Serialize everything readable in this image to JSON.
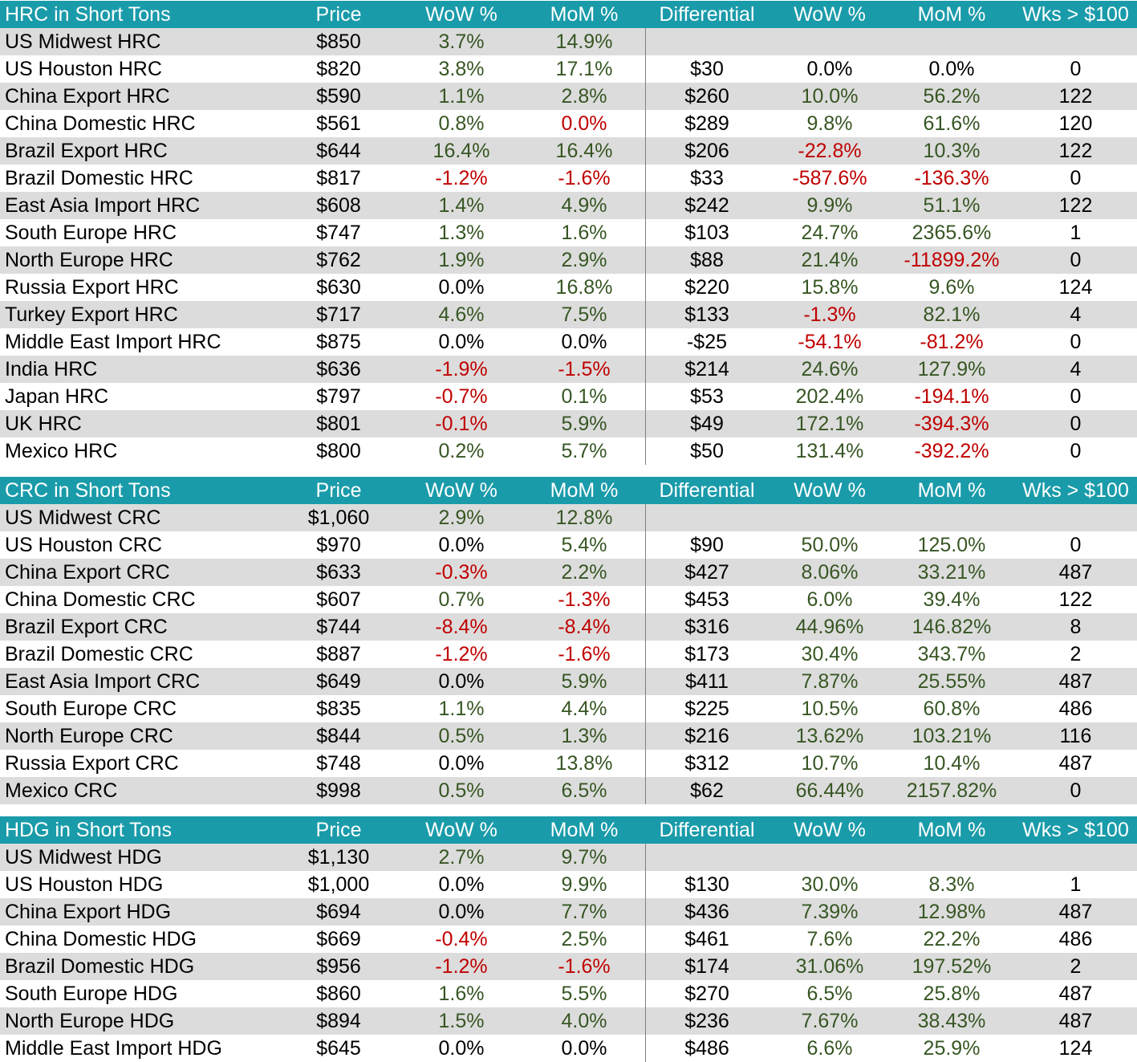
{
  "colors": {
    "header_bg": "#1a9baa",
    "shade_bg": "#dcdcdc",
    "positive": "#375623",
    "negative": "#c00000"
  },
  "sections": [
    {
      "headers": [
        "HRC in Short Tons",
        "Price",
        "WoW %",
        "MoM %",
        "Differential",
        "WoW %",
        "MoM %",
        "Wks > $100"
      ],
      "rows": [
        [
          "US Midwest HRC",
          "$850",
          "3.7%",
          "14.9%",
          "",
          "",
          "",
          ""
        ],
        [
          "US Houston HRC",
          "$820",
          "3.8%",
          "17.1%",
          "$30",
          "0.0%",
          "0.0%",
          "0"
        ],
        [
          "China Export HRC",
          "$590",
          "1.1%",
          "2.8%",
          "$260",
          "10.0%",
          "56.2%",
          "122"
        ],
        [
          "China Domestic HRC",
          "$561",
          "0.8%",
          "0.0%",
          "$289",
          "9.8%",
          "61.6%",
          "120"
        ],
        [
          "Brazil Export HRC",
          "$644",
          "16.4%",
          "16.4%",
          "$206",
          "-22.8%",
          "10.3%",
          "122"
        ],
        [
          "Brazil Domestic HRC",
          "$817",
          "-1.2%",
          "-1.6%",
          "$33",
          "-587.6%",
          "-136.3%",
          "0"
        ],
        [
          "East Asia Import HRC",
          "$608",
          "1.4%",
          "4.9%",
          "$242",
          "9.9%",
          "51.1%",
          "122"
        ],
        [
          "South Europe HRC",
          "$747",
          "1.3%",
          "1.6%",
          "$103",
          "24.7%",
          "2365.6%",
          "1"
        ],
        [
          "North Europe HRC",
          "$762",
          "1.9%",
          "2.9%",
          "$88",
          "21.4%",
          "-11899.2%",
          "0"
        ],
        [
          "Russia Export HRC",
          "$630",
          "0.0%",
          "16.8%",
          "$220",
          "15.8%",
          "9.6%",
          "124"
        ],
        [
          "Turkey Export HRC",
          "$717",
          "4.6%",
          "7.5%",
          "$133",
          "-1.3%",
          "82.1%",
          "4"
        ],
        [
          "Middle East Import HRC",
          "$875",
          "0.0%",
          "0.0%",
          "-$25",
          "-54.1%",
          "-81.2%",
          "0"
        ],
        [
          "India HRC",
          "$636",
          "-1.9%",
          "-1.5%",
          "$214",
          "24.6%",
          "127.9%",
          "4"
        ],
        [
          "Japan HRC",
          "$797",
          "-0.7%",
          "0.1%",
          "$53",
          "202.4%",
          "-194.1%",
          "0"
        ],
        [
          "UK HRC",
          "$801",
          "-0.1%",
          "5.9%",
          "$49",
          "172.1%",
          "-394.3%",
          "0"
        ],
        [
          "Mexico HRC",
          "$800",
          "0.2%",
          "5.7%",
          "$50",
          "131.4%",
          "-392.2%",
          "0"
        ]
      ],
      "colors": [
        [
          "",
          "",
          "pos",
          "pos",
          "",
          "",
          "",
          ""
        ],
        [
          "",
          "",
          "pos",
          "pos",
          "",
          "",
          "",
          ""
        ],
        [
          "",
          "",
          "pos",
          "pos",
          "",
          "pos",
          "pos",
          ""
        ],
        [
          "",
          "",
          "pos",
          "neg",
          "",
          "pos",
          "pos",
          ""
        ],
        [
          "",
          "",
          "pos",
          "pos",
          "",
          "neg",
          "pos",
          ""
        ],
        [
          "",
          "",
          "neg",
          "neg",
          "",
          "neg",
          "neg",
          ""
        ],
        [
          "",
          "",
          "pos",
          "pos",
          "",
          "pos",
          "pos",
          ""
        ],
        [
          "",
          "",
          "pos",
          "pos",
          "",
          "pos",
          "pos",
          ""
        ],
        [
          "",
          "",
          "pos",
          "pos",
          "",
          "pos",
          "neg",
          ""
        ],
        [
          "",
          "",
          "",
          "pos",
          "",
          "pos",
          "pos",
          ""
        ],
        [
          "",
          "",
          "pos",
          "pos",
          "",
          "neg",
          "pos",
          ""
        ],
        [
          "",
          "",
          "",
          "",
          "",
          "neg",
          "neg",
          ""
        ],
        [
          "",
          "",
          "neg",
          "neg",
          "",
          "pos",
          "pos",
          ""
        ],
        [
          "",
          "",
          "neg",
          "pos",
          "",
          "pos",
          "neg",
          ""
        ],
        [
          "",
          "",
          "neg",
          "pos",
          "",
          "pos",
          "neg",
          ""
        ],
        [
          "",
          "",
          "pos",
          "pos",
          "",
          "pos",
          "neg",
          ""
        ]
      ]
    },
    {
      "headers": [
        "CRC in Short Tons",
        "Price",
        "WoW %",
        "MoM %",
        "Differential",
        "WoW %",
        "MoM %",
        "Wks > $100"
      ],
      "rows": [
        [
          "US Midwest CRC",
          "$1,060",
          "2.9%",
          "12.8%",
          "",
          "",
          "",
          ""
        ],
        [
          "US Houston CRC",
          "$970",
          "0.0%",
          "5.4%",
          "$90",
          "50.0%",
          "125.0%",
          "0"
        ],
        [
          "China Export CRC",
          "$633",
          "-0.3%",
          "2.2%",
          "$427",
          "8.06%",
          "33.21%",
          "487"
        ],
        [
          "China Domestic CRC",
          "$607",
          "0.7%",
          "-1.3%",
          "$453",
          "6.0%",
          "39.4%",
          "122"
        ],
        [
          "Brazil Export CRC",
          "$744",
          "-8.4%",
          "-8.4%",
          "$316",
          "44.96%",
          "146.82%",
          "8"
        ],
        [
          "Brazil Domestic CRC",
          "$887",
          "-1.2%",
          "-1.6%",
          "$173",
          "30.4%",
          "343.7%",
          "2"
        ],
        [
          "East Asia Import CRC",
          "$649",
          "0.0%",
          "5.9%",
          "$411",
          "7.87%",
          "25.55%",
          "487"
        ],
        [
          "South Europe CRC",
          "$835",
          "1.1%",
          "4.4%",
          "$225",
          "10.5%",
          "60.8%",
          "486"
        ],
        [
          "North Europe CRC",
          "$844",
          "0.5%",
          "1.3%",
          "$216",
          "13.62%",
          "103.21%",
          "116"
        ],
        [
          "Russia Export CRC",
          "$748",
          "0.0%",
          "13.8%",
          "$312",
          "10.7%",
          "10.4%",
          "487"
        ],
        [
          "Mexico CRC",
          "$998",
          "0.5%",
          "6.5%",
          "$62",
          "66.44%",
          "2157.82%",
          "0"
        ]
      ],
      "colors": [
        [
          "",
          "",
          "pos",
          "pos",
          "",
          "",
          "",
          ""
        ],
        [
          "",
          "",
          "",
          "pos",
          "",
          "pos",
          "pos",
          ""
        ],
        [
          "",
          "",
          "neg",
          "pos",
          "",
          "pos",
          "pos",
          ""
        ],
        [
          "",
          "",
          "pos",
          "neg",
          "",
          "pos",
          "pos",
          ""
        ],
        [
          "",
          "",
          "neg",
          "neg",
          "",
          "pos",
          "pos",
          ""
        ],
        [
          "",
          "",
          "neg",
          "neg",
          "",
          "pos",
          "pos",
          ""
        ],
        [
          "",
          "",
          "",
          "pos",
          "",
          "pos",
          "pos",
          ""
        ],
        [
          "",
          "",
          "pos",
          "pos",
          "",
          "pos",
          "pos",
          ""
        ],
        [
          "",
          "",
          "pos",
          "pos",
          "",
          "pos",
          "pos",
          ""
        ],
        [
          "",
          "",
          "",
          "pos",
          "",
          "pos",
          "pos",
          ""
        ],
        [
          "",
          "",
          "pos",
          "pos",
          "",
          "pos",
          "pos",
          ""
        ]
      ]
    },
    {
      "headers": [
        "HDG in Short Tons",
        "Price",
        "WoW %",
        "MoM %",
        "Differential",
        "WoW %",
        "MoM %",
        "Wks > $100"
      ],
      "rows": [
        [
          "US Midwest HDG",
          "$1,130",
          "2.7%",
          "9.7%",
          "",
          "",
          "",
          ""
        ],
        [
          "US Houston HDG",
          "$1,000",
          "0.0%",
          "9.9%",
          "$130",
          "30.0%",
          "8.3%",
          "1"
        ],
        [
          "China Export HDG",
          "$694",
          "0.0%",
          "7.7%",
          "$436",
          "7.39%",
          "12.98%",
          "487"
        ],
        [
          "China Domestic HDG",
          "$669",
          "-0.4%",
          "2.5%",
          "$461",
          "7.6%",
          "22.2%",
          "486"
        ],
        [
          "Brazil Domestic HDG",
          "$956",
          "-1.2%",
          "-1.6%",
          "$174",
          "31.06%",
          "197.52%",
          "2"
        ],
        [
          "South Europe HDG",
          "$860",
          "1.6%",
          "5.5%",
          "$270",
          "6.5%",
          "25.8%",
          "487"
        ],
        [
          "North Europe HDG",
          "$894",
          "1.5%",
          "4.0%",
          "$236",
          "7.67%",
          "38.43%",
          "487"
        ],
        [
          "Middle East Import HDG",
          "$645",
          "0.0%",
          "0.0%",
          "$486",
          "6.6%",
          "25.9%",
          "124"
        ]
      ],
      "colors": [
        [
          "",
          "",
          "pos",
          "pos",
          "",
          "",
          "",
          ""
        ],
        [
          "",
          "",
          "",
          "pos",
          "",
          "pos",
          "pos",
          ""
        ],
        [
          "",
          "",
          "",
          "pos",
          "",
          "pos",
          "pos",
          ""
        ],
        [
          "",
          "",
          "neg",
          "pos",
          "",
          "pos",
          "pos",
          ""
        ],
        [
          "",
          "",
          "neg",
          "neg",
          "",
          "pos",
          "pos",
          ""
        ],
        [
          "",
          "",
          "pos",
          "pos",
          "",
          "pos",
          "pos",
          ""
        ],
        [
          "",
          "",
          "pos",
          "pos",
          "",
          "pos",
          "pos",
          ""
        ],
        [
          "",
          "",
          "",
          "",
          "",
          "pos",
          "pos",
          ""
        ]
      ]
    }
  ]
}
